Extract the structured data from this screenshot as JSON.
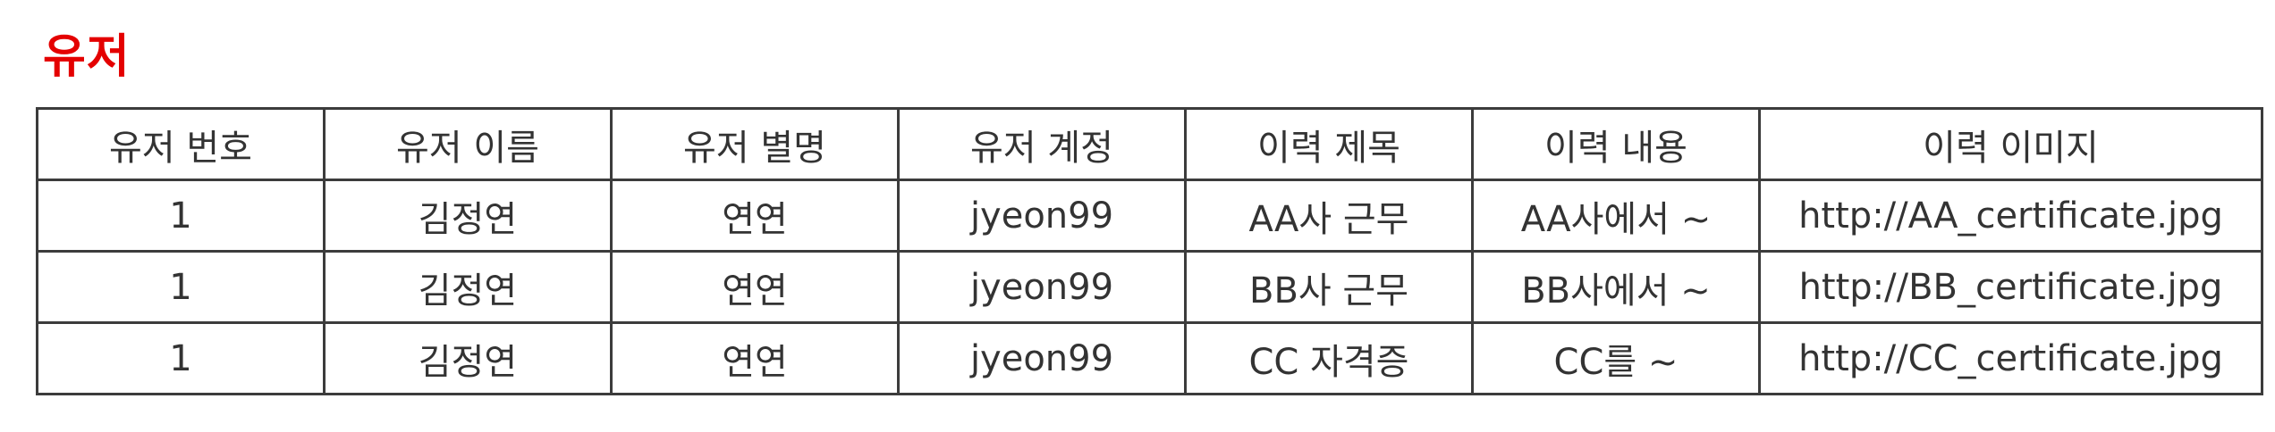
{
  "section": {
    "title": "유저",
    "title_color": "#e40000"
  },
  "table": {
    "columns": [
      "유저 번호",
      "유저 이름",
      "유저 별명",
      "유저 계정",
      "이력 제목",
      "이력 내용",
      "이력 이미지"
    ],
    "rows": [
      [
        "1",
        "김정연",
        "연연",
        "jyeon99",
        "AA사 근무",
        "AA사에서 ~",
        "http://AA_certificate.jpg"
      ],
      [
        "1",
        "김정연",
        "연연",
        "jyeon99",
        "BB사 근무",
        "BB사에서 ~",
        "http://BB_certificate.jpg"
      ],
      [
        "1",
        "김정연",
        "연연",
        "jyeon99",
        "CC 자격증",
        "CC를 ~",
        "http://CC_certificate.jpg"
      ]
    ]
  }
}
